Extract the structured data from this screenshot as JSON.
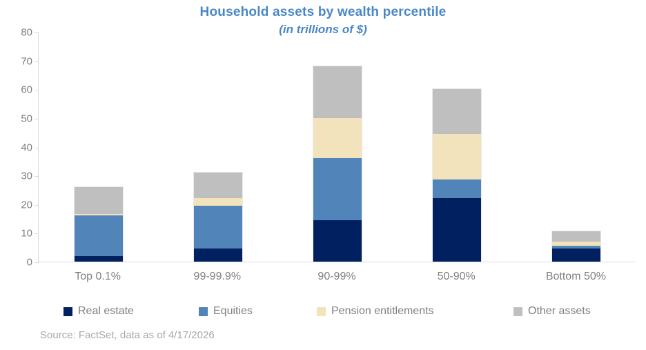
{
  "title": "Household assets by wealth percentile",
  "subtitle": "(in trillions of $)",
  "footer": {
    "source": "Source: FactSet, data as of 4/17/2026"
  },
  "colors": {
    "title": "#4a86c5",
    "axis_line": "#d9d9d9",
    "axis_label": "#7f7f7f",
    "legend_label": "#808080",
    "source_text": "#a8a8a8",
    "real_estate": "#002060",
    "equities": "#5184b8",
    "pension_entitlements": "#f2e3bc",
    "other_assets": "#bfbfbf"
  },
  "chart_data": {
    "type": "bar",
    "stacked": true,
    "title": "Household assets by wealth percentile",
    "subtitle": "(in trillions of $)",
    "categories": [
      "Top 0.1%",
      "99-99.9%",
      "90-99%",
      "50-90%",
      "Bottom 50%"
    ],
    "series": [
      {
        "name": "Real estate",
        "color": "#002060",
        "values": [
          2,
          4.5,
          14.5,
          22,
          4.5
        ]
      },
      {
        "name": "Equities",
        "color": "#5184b8",
        "values": [
          14,
          15,
          21.5,
          6.5,
          1
        ]
      },
      {
        "name": "Pension entitlements",
        "color": "#f2e3bc",
        "values": [
          0.5,
          2.5,
          14,
          16,
          1.5
        ]
      },
      {
        "name": "Other assets",
        "color": "#bfbfbf",
        "values": [
          9.5,
          9,
          18,
          15.5,
          3.5
        ]
      }
    ],
    "totals": [
      26,
      31,
      68,
      60,
      10.5
    ],
    "xlabel": "",
    "ylabel": "",
    "ylim": [
      0,
      80
    ],
    "yticks": [
      0,
      10,
      20,
      30,
      40,
      50,
      60,
      70,
      80
    ],
    "grid": false,
    "legend_position": "bottom"
  }
}
